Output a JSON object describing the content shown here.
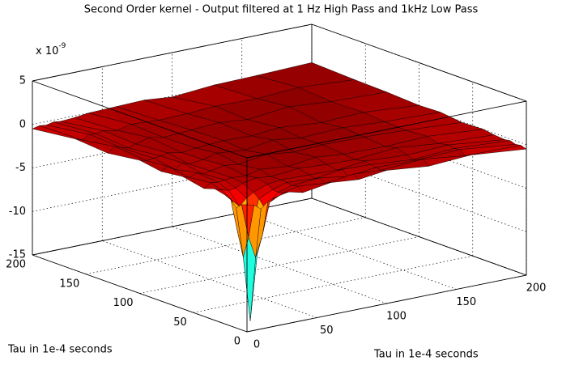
{
  "chart_data": {
    "type": "surface",
    "title": "Second Order kernel - Output filtered at 1 Hz High Pass and 1kHz Low Pass",
    "x_label": "Tau in 1e-4 seconds",
    "y_label": "Tau in 1e-4 seconds",
    "z_scale_label": {
      "base": "x 10",
      "exponent": "-9"
    },
    "x": [
      0,
      5,
      10,
      15,
      20,
      30,
      40,
      60,
      80,
      100,
      130,
      160,
      200
    ],
    "y": [
      0,
      5,
      10,
      15,
      20,
      30,
      40,
      60,
      80,
      100,
      130,
      160,
      200
    ],
    "z": [
      [
        -0.4,
        -0.6,
        -1.2,
        -0.5,
        -0.2,
        0.1,
        -0.3,
        0.2,
        -0.1,
        0.3,
        -0.2,
        0.1,
        -0.5
      ],
      [
        -0.6,
        -4.5,
        -7.0,
        -4.5,
        -1.0,
        -0.2,
        0.2,
        -0.1,
        0.3,
        0.1,
        0.4,
        -0.2,
        -0.3
      ],
      [
        -1.2,
        -7.0,
        -14.5,
        -7.0,
        -1.8,
        -0.4,
        0.1,
        0.3,
        -0.2,
        0.2,
        0.1,
        0.3,
        -0.4
      ],
      [
        -0.5,
        -4.5,
        -7.0,
        -4.5,
        -1.0,
        -0.3,
        0.2,
        0.0,
        0.4,
        0.3,
        -0.1,
        0.2,
        -0.2
      ],
      [
        -0.2,
        -1.0,
        -1.8,
        -1.0,
        -0.5,
        0.1,
        0.3,
        0.2,
        0.1,
        0.5,
        0.2,
        0.4,
        -0.3
      ],
      [
        0.1,
        -0.2,
        -0.4,
        -0.3,
        0.1,
        0.4,
        0.2,
        0.5,
        0.3,
        0.2,
        0.6,
        0.1,
        -0.2
      ],
      [
        -0.3,
        0.2,
        0.1,
        0.2,
        0.3,
        0.2,
        0.6,
        0.3,
        0.7,
        0.4,
        0.3,
        0.5,
        0.0
      ],
      [
        0.2,
        -0.1,
        0.3,
        0.0,
        0.2,
        0.5,
        0.3,
        0.8,
        0.4,
        0.6,
        0.5,
        0.3,
        -0.1
      ],
      [
        -0.1,
        0.3,
        -0.2,
        0.4,
        0.1,
        0.3,
        0.7,
        0.4,
        0.9,
        0.5,
        0.7,
        0.4,
        0.2
      ],
      [
        0.3,
        0.1,
        0.2,
        0.3,
        0.5,
        0.2,
        0.4,
        0.6,
        0.5,
        0.8,
        0.4,
        0.6,
        0.1
      ],
      [
        -0.2,
        0.4,
        0.1,
        -0.1,
        0.2,
        0.6,
        0.3,
        0.5,
        0.7,
        0.4,
        0.9,
        0.5,
        0.3
      ],
      [
        0.1,
        -0.2,
        0.3,
        0.2,
        0.4,
        0.1,
        0.5,
        0.3,
        0.4,
        0.6,
        0.5,
        0.8,
        0.4
      ],
      [
        -0.5,
        -0.3,
        -0.4,
        -0.2,
        -0.3,
        -0.2,
        0.0,
        0.1,
        0.2,
        -0.1,
        0.3,
        0.4,
        0.6
      ]
    ],
    "colormap": "jet",
    "edge_color": "#000000",
    "xlim": [
      0,
      200
    ],
    "ylim": [
      0,
      200
    ],
    "zlim": [
      -15,
      5
    ],
    "xticks": [
      0,
      50,
      100,
      150,
      200
    ],
    "yticks": [
      0,
      50,
      100,
      150,
      200
    ],
    "zticks": [
      -15,
      -10,
      -5,
      0,
      5
    ],
    "grid": true,
    "box": true
  }
}
